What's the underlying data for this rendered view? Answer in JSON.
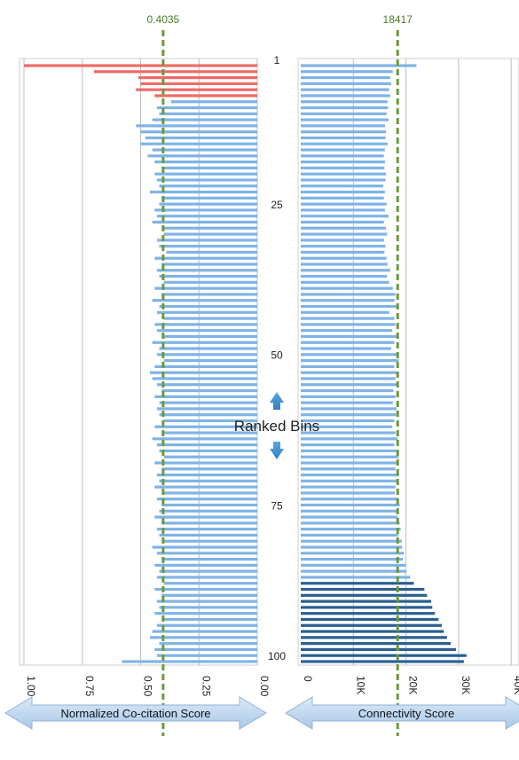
{
  "chart_data": [
    {
      "type": "bar",
      "orientation": "horizontal",
      "axis_direction": "reversed",
      "xlabel": "Normalized Co-citation Score",
      "xlim": [
        0,
        1.0
      ],
      "xticks": [
        "1.00",
        "0.75",
        "0.50",
        "0.25",
        "0.00"
      ],
      "reference": {
        "value": 0.4035,
        "label": "0.4035"
      },
      "colors": {
        "top": "#ee6b66",
        "main": "#7fb3e6"
      },
      "bins": [
        1,
        2,
        3,
        4,
        5,
        6,
        7,
        8,
        9,
        10,
        11,
        12,
        13,
        14,
        15,
        16,
        17,
        18,
        19,
        20,
        21,
        22,
        23,
        24,
        25,
        26,
        27,
        28,
        29,
        30,
        31,
        32,
        33,
        34,
        35,
        36,
        37,
        38,
        39,
        40,
        41,
        42,
        43,
        44,
        45,
        46,
        47,
        48,
        49,
        50,
        51,
        52,
        53,
        54,
        55,
        56,
        57,
        58,
        59,
        60,
        61,
        62,
        63,
        64,
        65,
        66,
        67,
        68,
        69,
        70,
        71,
        72,
        73,
        74,
        75,
        76,
        77,
        78,
        79,
        80,
        81,
        82,
        83,
        84,
        85,
        86,
        87,
        88,
        89,
        90,
        91,
        92,
        93,
        94,
        95,
        96,
        97,
        98,
        99,
        100
      ],
      "values": [
        1.0,
        0.7,
        0.51,
        0.5,
        0.52,
        0.44,
        0.37,
        0.43,
        0.42,
        0.45,
        0.52,
        0.5,
        0.48,
        0.5,
        0.45,
        0.47,
        0.44,
        0.41,
        0.44,
        0.43,
        0.42,
        0.46,
        0.41,
        0.42,
        0.44,
        0.43,
        0.45,
        0.41,
        0.4,
        0.43,
        0.42,
        0.39,
        0.44,
        0.41,
        0.43,
        0.42,
        0.4,
        0.44,
        0.41,
        0.45,
        0.42,
        0.43,
        0.4,
        0.44,
        0.43,
        0.41,
        0.45,
        0.42,
        0.43,
        0.4,
        0.44,
        0.46,
        0.45,
        0.43,
        0.41,
        0.44,
        0.42,
        0.43,
        0.42,
        0.4,
        0.44,
        0.41,
        0.45,
        0.43,
        0.42,
        0.4,
        0.44,
        0.41,
        0.43,
        0.42,
        0.44,
        0.4,
        0.43,
        0.41,
        0.42,
        0.44,
        0.41,
        0.43,
        0.42,
        0.4,
        0.45,
        0.43,
        0.41,
        0.44,
        0.42,
        0.43,
        0.4,
        0.44,
        0.41,
        0.43,
        0.42,
        0.44,
        0.41,
        0.43,
        0.45,
        0.46,
        0.42,
        0.44,
        0.43,
        0.58
      ],
      "top_count": 6
    },
    {
      "type": "bar",
      "orientation": "horizontal",
      "xlabel": "Connectivity Score",
      "xlim": [
        0,
        40000
      ],
      "xticks": [
        "0",
        "10K",
        "20K",
        "30K",
        "40K"
      ],
      "reference": {
        "value": 18417,
        "label": "18417"
      },
      "colors": {
        "main": "#7fb3e6",
        "top": "#2a5f92"
      },
      "values": [
        22000,
        17500,
        17000,
        17200,
        16800,
        17000,
        16500,
        16600,
        16300,
        16700,
        16000,
        16200,
        16100,
        16500,
        16000,
        15800,
        16000,
        15900,
        16200,
        16100,
        15700,
        16000,
        15800,
        16300,
        16000,
        16700,
        15800,
        16200,
        16400,
        15800,
        16100,
        15900,
        16300,
        16500,
        17000,
        16400,
        16800,
        17500,
        18000,
        17800,
        18200,
        16800,
        17800,
        18000,
        17400,
        18300,
        17800,
        17200,
        18400,
        18600,
        17800,
        18300,
        18000,
        18500,
        17600,
        18000,
        17500,
        18200,
        18100,
        17800,
        17400,
        18000,
        18400,
        17800,
        18200,
        18600,
        18300,
        18000,
        18700,
        18200,
        18000,
        17900,
        18500,
        18800,
        18200,
        18400,
        18800,
        19000,
        18500,
        19200,
        19300,
        19600,
        19400,
        19900,
        20100,
        20800,
        21500,
        23500,
        24000,
        24800,
        25000,
        25500,
        26200,
        26800,
        27200,
        27800,
        28500,
        29500,
        31500,
        31000
      ],
      "top_count": 14
    }
  ],
  "center": {
    "rank_labels": [
      "1",
      "25",
      "50",
      "75",
      "100"
    ],
    "rank_values": [
      1,
      25,
      50,
      75,
      100
    ],
    "label": "Ranked Bins"
  }
}
